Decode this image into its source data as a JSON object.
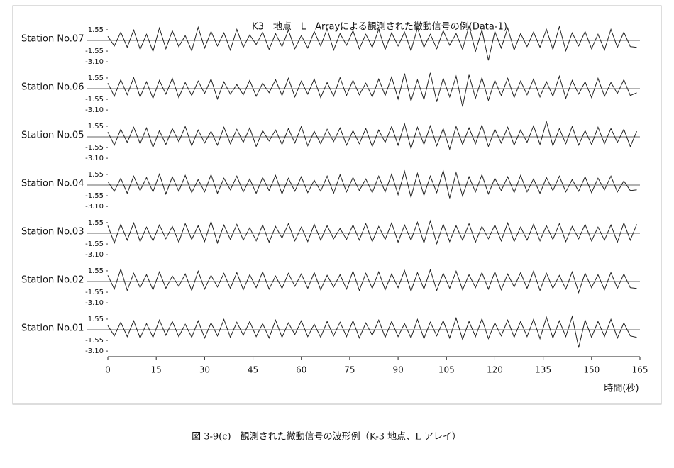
{
  "chart_data": {
    "type": "line",
    "title": "K3　地点　L　Arrayによる観測された微動信号の例(Data-1)",
    "xlabel": "時間(秒)",
    "caption": "図 3-9(c)　観測された微動信号の波形例（K-3 地点、L アレイ）",
    "x": [
      0,
      2,
      4,
      6,
      8,
      10,
      12,
      14,
      16,
      18,
      20,
      22,
      24,
      26,
      28,
      30,
      32,
      34,
      36,
      38,
      40,
      42,
      44,
      46,
      48,
      50,
      52,
      54,
      56,
      58,
      60,
      62,
      64,
      66,
      68,
      70,
      72,
      74,
      76,
      78,
      80,
      82,
      84,
      86,
      88,
      90,
      92,
      94,
      96,
      98,
      100,
      102,
      104,
      106,
      108,
      110,
      112,
      114,
      116,
      118,
      120,
      122,
      124,
      126,
      128,
      130,
      132,
      134,
      136,
      138,
      140,
      142,
      144,
      146,
      148,
      150,
      152,
      154,
      156,
      158,
      160,
      162,
      164
    ],
    "xlim": [
      0,
      165
    ],
    "xticks": [
      0,
      15,
      30,
      45,
      60,
      75,
      90,
      105,
      120,
      135,
      150,
      165
    ],
    "ylim": [
      -3.5,
      3.5
    ],
    "yticks": [
      1.55,
      -1.55,
      {
        "value": -3.1,
        "label": "-3.10"
      }
    ],
    "color": "#222222",
    "series": [
      {
        "name": "Station No.07",
        "values": [
          0.6,
          -0.8,
          1.2,
          -1.0,
          1.5,
          -1.3,
          0.9,
          -1.6,
          1.8,
          -1.2,
          1.4,
          -0.9,
          0.7,
          -1.5,
          1.9,
          -1.1,
          1.3,
          -0.8,
          1.1,
          -1.4,
          1.6,
          -1.0,
          0.8,
          -0.6,
          1.2,
          -1.3,
          1.0,
          -0.9,
          1.5,
          -1.2,
          0.7,
          -1.1,
          1.3,
          -0.8,
          1.7,
          -1.4,
          1.0,
          -0.7,
          1.4,
          -1.2,
          0.9,
          -1.0,
          1.6,
          -1.3,
          1.1,
          -0.8,
          1.2,
          -1.5,
          1.8,
          -1.0,
          0.9,
          -1.2,
          1.4,
          -0.7,
          1.0,
          -1.3,
          2.1,
          -1.6,
          1.5,
          -2.9,
          1.3,
          -1.1,
          1.8,
          -1.4,
          1.0,
          -0.9,
          1.2,
          -1.0,
          1.6,
          -1.3,
          2.0,
          -1.5,
          1.1,
          -0.8,
          1.3,
          -1.2,
          0.9,
          -1.4,
          1.6,
          -1.0,
          1.2,
          -0.9,
          -1.0
        ]
      },
      {
        "name": "Station No.06",
        "values": [
          0.8,
          -1.1,
          1.3,
          -0.9,
          1.6,
          -1.2,
          1.0,
          -1.4,
          1.2,
          -0.8,
          1.5,
          -1.3,
          0.9,
          -1.0,
          1.1,
          -0.7,
          1.4,
          -1.5,
          1.0,
          -0.8,
          0.6,
          -0.9,
          1.2,
          -1.1,
          0.8,
          -0.6,
          1.3,
          -1.0,
          1.5,
          -1.2,
          1.1,
          -0.8,
          1.4,
          -1.3,
          0.9,
          -1.1,
          1.6,
          -1.0,
          1.2,
          -0.9,
          0.8,
          -1.2,
          1.4,
          -1.0,
          1.7,
          -1.5,
          2.2,
          -1.8,
          1.3,
          -1.6,
          2.3,
          -1.9,
          1.5,
          -1.2,
          1.8,
          -2.6,
          2.0,
          -1.4,
          1.6,
          -1.7,
          1.2,
          -1.0,
          1.5,
          -1.3,
          1.1,
          -0.9,
          1.4,
          -1.2,
          1.0,
          -1.1,
          1.8,
          -1.4,
          1.2,
          -0.8,
          1.0,
          -1.3,
          1.5,
          -1.1,
          0.9,
          -0.7,
          1.3,
          -1.0,
          -0.6
        ]
      },
      {
        "name": "Station No.05",
        "values": [
          0.7,
          -1.2,
          1.1,
          -0.8,
          1.4,
          -1.0,
          1.3,
          -1.5,
          0.9,
          -1.1,
          1.2,
          -0.7,
          1.5,
          -1.3,
          1.0,
          -0.9,
          0.8,
          -1.2,
          1.4,
          -1.0,
          1.1,
          -0.8,
          1.3,
          -1.4,
          0.9,
          -0.6,
          1.0,
          -1.1,
          1.2,
          -0.9,
          1.5,
          -1.3,
          0.8,
          -1.0,
          1.1,
          -0.7,
          1.3,
          -1.2,
          0.9,
          -1.0,
          1.2,
          -1.4,
          1.0,
          -0.8,
          1.5,
          -1.2,
          1.9,
          -1.7,
          1.4,
          -1.1,
          1.6,
          -1.3,
          1.2,
          -1.8,
          1.5,
          -1.1,
          1.3,
          -1.0,
          1.7,
          -1.4,
          1.1,
          -0.9,
          1.4,
          -1.2,
          1.0,
          -0.8,
          1.6,
          -1.1,
          2.2,
          -1.3,
          1.2,
          -1.0,
          1.5,
          -1.2,
          0.9,
          -1.1,
          1.4,
          -1.0,
          1.2,
          -0.8,
          1.1,
          -1.4,
          0.8
        ]
      },
      {
        "name": "Station No.04",
        "values": [
          0.5,
          -0.9,
          1.0,
          -1.2,
          1.3,
          -0.8,
          1.1,
          -1.0,
          1.6,
          -1.3,
          1.2,
          -0.9,
          1.4,
          -1.1,
          0.8,
          -1.0,
          1.5,
          -1.2,
          1.0,
          -0.7,
          1.3,
          -1.0,
          0.9,
          -1.2,
          1.1,
          -0.8,
          1.4,
          -1.3,
          1.0,
          -0.9,
          1.2,
          -1.1,
          0.7,
          -0.9,
          1.3,
          -1.2,
          1.5,
          -1.0,
          1.1,
          -0.8,
          0.9,
          -1.1,
          1.3,
          -1.0,
          1.6,
          -1.4,
          2.0,
          -1.8,
          1.7,
          -1.5,
          1.3,
          -1.1,
          2.1,
          -1.9,
          1.8,
          -1.6,
          1.2,
          -1.0,
          1.5,
          -1.3,
          1.0,
          -0.8,
          1.2,
          -1.1,
          1.4,
          -1.0,
          0.9,
          -1.2,
          1.1,
          -0.8,
          1.3,
          -1.0,
          0.8,
          -0.9,
          1.2,
          -1.1,
          1.0,
          -0.7,
          1.3,
          -1.0,
          0.6,
          -0.8,
          -0.7
        ]
      },
      {
        "name": "Station No.03",
        "values": [
          1.1,
          -1.4,
          1.3,
          -1.0,
          1.5,
          -1.2,
          0.9,
          -1.1,
          1.2,
          -0.8,
          1.0,
          -1.3,
          1.4,
          -0.9,
          1.1,
          -1.2,
          1.7,
          -1.4,
          1.2,
          -0.9,
          1.3,
          -1.0,
          0.8,
          -1.1,
          1.2,
          -1.3,
          1.0,
          -0.7,
          1.4,
          -1.1,
          0.9,
          -1.2,
          1.3,
          -1.0,
          1.1,
          -0.8,
          0.7,
          -0.9,
          1.2,
          -1.0,
          1.4,
          -1.2,
          1.0,
          -0.9,
          1.5,
          -1.3,
          1.2,
          -1.0,
          1.6,
          -1.4,
          1.8,
          -1.5,
          1.3,
          -1.2,
          1.1,
          -1.0,
          1.4,
          -1.3,
          1.0,
          -0.8,
          1.2,
          -1.1,
          1.5,
          -1.2,
          0.9,
          -1.0,
          1.3,
          -1.1,
          1.1,
          -0.9,
          1.4,
          -1.2,
          1.0,
          -0.8,
          1.3,
          -1.1,
          0.9,
          -1.0,
          1.2,
          -1.3,
          1.5,
          -1.0,
          1.3
        ]
      },
      {
        "name": "Station No.02",
        "values": [
          0.9,
          -1.1,
          1.8,
          -1.3,
          1.2,
          -0.9,
          1.0,
          -1.2,
          1.4,
          -1.0,
          0.8,
          -0.7,
          1.1,
          -1.3,
          1.5,
          -1.1,
          0.9,
          -0.8,
          1.2,
          -1.0,
          1.3,
          -1.2,
          1.0,
          -0.9,
          1.4,
          -1.1,
          0.8,
          -1.0,
          1.2,
          -0.7,
          1.1,
          -1.0,
          1.3,
          -1.2,
          0.9,
          -0.8,
          1.0,
          -1.1,
          1.5,
          -1.3,
          1.2,
          -1.0,
          1.4,
          -1.2,
          1.1,
          -0.9,
          1.6,
          -1.4,
          1.3,
          -1.1,
          1.7,
          -1.3,
          1.2,
          -1.0,
          1.5,
          -1.2,
          1.0,
          -0.9,
          1.3,
          -1.1,
          1.4,
          -1.2,
          1.1,
          -0.8,
          1.3,
          -1.0,
          1.5,
          -1.3,
          1.2,
          -1.0,
          0.9,
          -1.1,
          1.4,
          -1.6,
          1.2,
          -0.9,
          1.0,
          -1.2,
          1.3,
          -1.0,
          1.1,
          -0.9,
          -1.0
        ]
      },
      {
        "name": "Station No.01",
        "values": [
          0.6,
          -0.9,
          1.1,
          -1.0,
          1.3,
          -1.2,
          0.9,
          -1.1,
          1.4,
          -0.8,
          1.2,
          -1.0,
          0.8,
          -1.1,
          1.3,
          -1.2,
          1.0,
          -0.9,
          1.5,
          -1.1,
          1.1,
          -0.8,
          1.2,
          -1.0,
          0.9,
          -1.2,
          1.4,
          -1.1,
          1.0,
          -0.7,
          1.3,
          -1.0,
          0.8,
          -1.1,
          1.2,
          -0.9,
          1.1,
          -1.0,
          1.3,
          -1.2,
          1.0,
          -0.8,
          1.4,
          -1.1,
          1.2,
          -1.0,
          0.9,
          -1.2,
          1.5,
          -1.3,
          1.1,
          -0.9,
          1.3,
          -1.2,
          1.7,
          -1.4,
          1.2,
          -1.0,
          1.6,
          -1.3,
          1.0,
          -0.9,
          1.4,
          -1.1,
          1.2,
          -1.0,
          1.5,
          -1.3,
          1.8,
          -1.2,
          1.3,
          -1.0,
          1.9,
          -2.6,
          1.4,
          -1.1,
          1.2,
          -1.0,
          1.5,
          -1.2,
          1.0,
          -0.9,
          -1.1
        ]
      }
    ]
  }
}
